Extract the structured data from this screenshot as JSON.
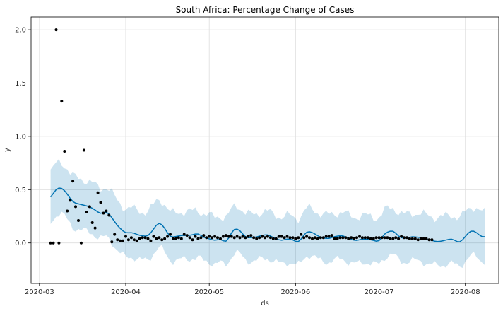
{
  "chart_data": {
    "type": "scatter",
    "title": "South Africa: Percentage Change of Cases",
    "xlabel": "ds",
    "ylabel": "y",
    "x_tick_labels": [
      "2020-03",
      "2020-04",
      "2020-05",
      "2020-06",
      "2020-07",
      "2020-08"
    ],
    "y_tick_labels": [
      "0.0",
      "0.5",
      "1.0",
      "1.5",
      "2.0"
    ],
    "y_ticks": [
      0.0,
      0.5,
      1.0,
      1.5,
      2.0
    ],
    "x_range": [
      "2020-02-27",
      "2020-08-13"
    ],
    "y_range": [
      -0.38,
      2.12
    ],
    "grid": true,
    "colors": {
      "points": "#000000",
      "forecast_line": "#0072B2",
      "uncertainty_band": "#0072B2"
    },
    "observations": [
      [
        "2020-03-05",
        0.0
      ],
      [
        "2020-03-06",
        0.0
      ],
      [
        "2020-03-07",
        2.0
      ],
      [
        "2020-03-08",
        0.0
      ],
      [
        "2020-03-09",
        1.33
      ],
      [
        "2020-03-10",
        0.86
      ],
      [
        "2020-03-11",
        0.3
      ],
      [
        "2020-03-12",
        0.4
      ],
      [
        "2020-03-13",
        0.58
      ],
      [
        "2020-03-14",
        0.34
      ],
      [
        "2020-03-15",
        0.21
      ],
      [
        "2020-03-16",
        0.0
      ],
      [
        "2020-03-17",
        0.87
      ],
      [
        "2020-03-18",
        0.29
      ],
      [
        "2020-03-19",
        0.34
      ],
      [
        "2020-03-20",
        0.19
      ],
      [
        "2020-03-21",
        0.14
      ],
      [
        "2020-03-22",
        0.47
      ],
      [
        "2020-03-23",
        0.38
      ],
      [
        "2020-03-24",
        0.28
      ],
      [
        "2020-03-25",
        0.3
      ],
      [
        "2020-03-26",
        0.26
      ],
      [
        "2020-03-27",
        0.01
      ],
      [
        "2020-03-28",
        0.08
      ],
      [
        "2020-03-29",
        0.03
      ],
      [
        "2020-03-30",
        0.02
      ],
      [
        "2020-03-31",
        0.02
      ],
      [
        "2020-04-01",
        0.06
      ],
      [
        "2020-04-02",
        0.03
      ],
      [
        "2020-04-03",
        0.05
      ],
      [
        "2020-04-04",
        0.03
      ],
      [
        "2020-04-05",
        0.02
      ],
      [
        "2020-04-06",
        0.04
      ],
      [
        "2020-04-07",
        0.05
      ],
      [
        "2020-04-08",
        0.05
      ],
      [
        "2020-04-09",
        0.04
      ],
      [
        "2020-04-10",
        0.02
      ],
      [
        "2020-04-11",
        0.06
      ],
      [
        "2020-04-12",
        0.04
      ],
      [
        "2020-04-13",
        0.05
      ],
      [
        "2020-04-14",
        0.03
      ],
      [
        "2020-04-15",
        0.04
      ],
      [
        "2020-04-16",
        0.06
      ],
      [
        "2020-04-17",
        0.08
      ],
      [
        "2020-04-18",
        0.04
      ],
      [
        "2020-04-19",
        0.04
      ],
      [
        "2020-04-20",
        0.05
      ],
      [
        "2020-04-21",
        0.04
      ],
      [
        "2020-04-22",
        0.08
      ],
      [
        "2020-04-23",
        0.07
      ],
      [
        "2020-04-24",
        0.05
      ],
      [
        "2020-04-25",
        0.03
      ],
      [
        "2020-04-26",
        0.06
      ],
      [
        "2020-04-27",
        0.04
      ],
      [
        "2020-04-28",
        0.05
      ],
      [
        "2020-04-29",
        0.07
      ],
      [
        "2020-04-30",
        0.05
      ],
      [
        "2020-05-01",
        0.06
      ],
      [
        "2020-05-02",
        0.05
      ],
      [
        "2020-05-03",
        0.06
      ],
      [
        "2020-05-04",
        0.05
      ],
      [
        "2020-05-05",
        0.04
      ],
      [
        "2020-05-06",
        0.06
      ],
      [
        "2020-05-07",
        0.07
      ],
      [
        "2020-05-08",
        0.06
      ],
      [
        "2020-05-09",
        0.06
      ],
      [
        "2020-05-10",
        0.05
      ],
      [
        "2020-05-11",
        0.06
      ],
      [
        "2020-05-12",
        0.05
      ],
      [
        "2020-05-13",
        0.06
      ],
      [
        "2020-05-14",
        0.05
      ],
      [
        "2020-05-15",
        0.06
      ],
      [
        "2020-05-16",
        0.07
      ],
      [
        "2020-05-17",
        0.05
      ],
      [
        "2020-05-18",
        0.04
      ],
      [
        "2020-05-19",
        0.05
      ],
      [
        "2020-05-20",
        0.06
      ],
      [
        "2020-05-21",
        0.05
      ],
      [
        "2020-05-22",
        0.06
      ],
      [
        "2020-05-23",
        0.05
      ],
      [
        "2020-05-24",
        0.04
      ],
      [
        "2020-05-25",
        0.04
      ],
      [
        "2020-05-26",
        0.06
      ],
      [
        "2020-05-27",
        0.06
      ],
      [
        "2020-05-28",
        0.05
      ],
      [
        "2020-05-29",
        0.06
      ],
      [
        "2020-05-30",
        0.05
      ],
      [
        "2020-05-31",
        0.05
      ],
      [
        "2020-06-01",
        0.04
      ],
      [
        "2020-06-02",
        0.05
      ],
      [
        "2020-06-03",
        0.08
      ],
      [
        "2020-06-04",
        0.05
      ],
      [
        "2020-06-05",
        0.06
      ],
      [
        "2020-06-06",
        0.05
      ],
      [
        "2020-06-07",
        0.04
      ],
      [
        "2020-06-08",
        0.05
      ],
      [
        "2020-06-09",
        0.04
      ],
      [
        "2020-06-10",
        0.05
      ],
      [
        "2020-06-11",
        0.05
      ],
      [
        "2020-06-12",
        0.06
      ],
      [
        "2020-06-13",
        0.06
      ],
      [
        "2020-06-14",
        0.07
      ],
      [
        "2020-06-15",
        0.04
      ],
      [
        "2020-06-16",
        0.04
      ],
      [
        "2020-06-17",
        0.05
      ],
      [
        "2020-06-18",
        0.05
      ],
      [
        "2020-06-19",
        0.05
      ],
      [
        "2020-06-20",
        0.04
      ],
      [
        "2020-06-21",
        0.05
      ],
      [
        "2020-06-22",
        0.04
      ],
      [
        "2020-06-23",
        0.05
      ],
      [
        "2020-06-24",
        0.06
      ],
      [
        "2020-06-25",
        0.05
      ],
      [
        "2020-06-26",
        0.05
      ],
      [
        "2020-06-27",
        0.05
      ],
      [
        "2020-06-28",
        0.04
      ],
      [
        "2020-06-29",
        0.04
      ],
      [
        "2020-06-30",
        0.05
      ],
      [
        "2020-07-01",
        0.05
      ],
      [
        "2020-07-02",
        0.05
      ],
      [
        "2020-07-03",
        0.05
      ],
      [
        "2020-07-04",
        0.05
      ],
      [
        "2020-07-05",
        0.04
      ],
      [
        "2020-07-06",
        0.04
      ],
      [
        "2020-07-07",
        0.05
      ],
      [
        "2020-07-08",
        0.04
      ],
      [
        "2020-07-09",
        0.06
      ],
      [
        "2020-07-10",
        0.05
      ],
      [
        "2020-07-11",
        0.05
      ],
      [
        "2020-07-12",
        0.04
      ],
      [
        "2020-07-13",
        0.04
      ],
      [
        "2020-07-14",
        0.04
      ],
      [
        "2020-07-15",
        0.03
      ],
      [
        "2020-07-16",
        0.04
      ],
      [
        "2020-07-17",
        0.04
      ],
      [
        "2020-07-18",
        0.04
      ],
      [
        "2020-07-19",
        0.03
      ],
      [
        "2020-07-20",
        0.03
      ]
    ],
    "forecast_knots": [
      [
        "2020-03-05",
        0.42
      ],
      [
        "2020-03-07",
        0.51
      ],
      [
        "2020-03-09",
        0.52
      ],
      [
        "2020-03-11",
        0.46
      ],
      [
        "2020-03-13",
        0.38
      ],
      [
        "2020-03-16",
        0.36
      ],
      [
        "2020-03-19",
        0.34
      ],
      [
        "2020-03-21",
        0.31
      ],
      [
        "2020-03-23",
        0.27
      ],
      [
        "2020-03-25",
        0.3
      ],
      [
        "2020-03-27",
        0.24
      ],
      [
        "2020-03-29",
        0.16
      ],
      [
        "2020-04-01",
        0.09
      ],
      [
        "2020-04-03",
        0.1
      ],
      [
        "2020-04-06",
        0.07
      ],
      [
        "2020-04-09",
        0.06
      ],
      [
        "2020-04-11",
        0.13
      ],
      [
        "2020-04-13",
        0.2
      ],
      [
        "2020-04-15",
        0.14
      ],
      [
        "2020-04-17",
        0.05
      ],
      [
        "2020-04-21",
        0.07
      ],
      [
        "2020-04-24",
        0.07
      ],
      [
        "2020-04-27",
        0.09
      ],
      [
        "2020-04-29",
        0.05
      ],
      [
        "2020-05-01",
        0.04
      ],
      [
        "2020-05-03",
        0.02
      ],
      [
        "2020-05-05",
        0.04
      ],
      [
        "2020-05-07",
        0.0
      ],
      [
        "2020-05-10",
        0.14
      ],
      [
        "2020-05-12",
        0.12
      ],
      [
        "2020-05-14",
        0.05
      ],
      [
        "2020-05-17",
        0.05
      ],
      [
        "2020-05-20",
        0.07
      ],
      [
        "2020-05-22",
        0.08
      ],
      [
        "2020-05-24",
        0.05
      ],
      [
        "2020-05-27",
        0.02
      ],
      [
        "2020-05-29",
        0.04
      ],
      [
        "2020-05-31",
        0.03
      ],
      [
        "2020-06-02",
        0.0
      ],
      [
        "2020-06-05",
        0.11
      ],
      [
        "2020-06-07",
        0.1
      ],
      [
        "2020-06-10",
        0.05
      ],
      [
        "2020-06-13",
        0.04
      ],
      [
        "2020-06-15",
        0.06
      ],
      [
        "2020-06-18",
        0.07
      ],
      [
        "2020-06-20",
        0.04
      ],
      [
        "2020-06-23",
        0.02
      ],
      [
        "2020-06-25",
        0.04
      ],
      [
        "2020-06-28",
        0.03
      ],
      [
        "2020-07-01",
        0.01
      ],
      [
        "2020-07-03",
        0.09
      ],
      [
        "2020-07-06",
        0.12
      ],
      [
        "2020-07-08",
        0.06
      ],
      [
        "2020-07-10",
        0.04
      ],
      [
        "2020-07-13",
        0.06
      ],
      [
        "2020-07-16",
        0.05
      ],
      [
        "2020-07-19",
        0.03
      ],
      [
        "2020-07-22",
        0.01
      ],
      [
        "2020-07-24",
        0.02
      ],
      [
        "2020-07-27",
        0.04
      ],
      [
        "2020-07-30",
        0.0
      ],
      [
        "2020-08-01",
        0.06
      ],
      [
        "2020-08-03",
        0.12
      ],
      [
        "2020-08-05",
        0.1
      ],
      [
        "2020-08-07",
        0.05
      ],
      [
        "2020-08-08",
        0.06
      ]
    ],
    "band_width_knots": [
      [
        "2020-03-05",
        0.24
      ],
      [
        "2020-03-15",
        0.24
      ],
      [
        "2020-04-01",
        0.23
      ],
      [
        "2020-05-01",
        0.22
      ],
      [
        "2020-06-01",
        0.22
      ],
      [
        "2020-07-01",
        0.22
      ],
      [
        "2020-08-08",
        0.23
      ]
    ]
  }
}
